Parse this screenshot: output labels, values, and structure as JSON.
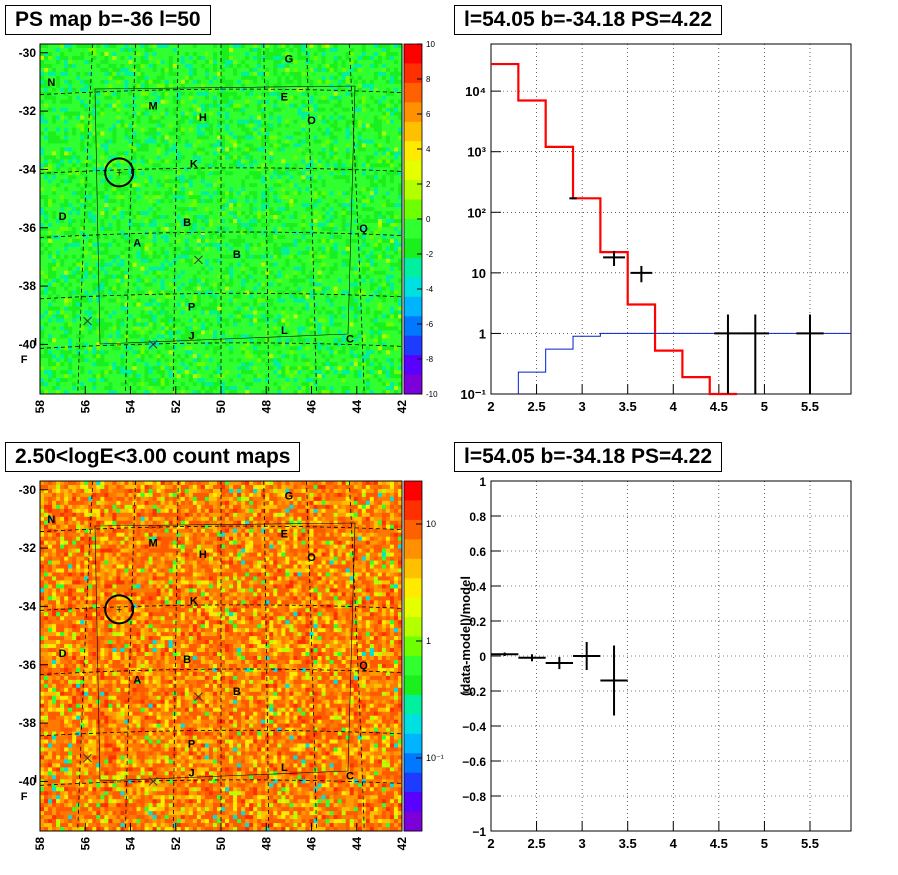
{
  "panels": {
    "ps_map": {
      "title": "PS map b=-36 l=50",
      "colorbar_ticks": [
        "10",
        "8",
        "6",
        "4",
        "2",
        "0",
        "-2",
        "-4",
        "-6",
        "-8",
        "-10"
      ]
    },
    "spectrum": {
      "title": "l=54.05 b=-34.18 PS=4.22"
    },
    "count_map": {
      "title": "2.50<logE<3.00 count maps",
      "colorbar_ticks": [
        "10",
        "1",
        "10⁻¹"
      ]
    },
    "residual": {
      "title": "l=54.05 b=-34.18 PS=4.22",
      "ylabel": "(data-model)/model"
    }
  },
  "map_axes": {
    "x_ticks": [
      "58",
      "56",
      "54",
      "52",
      "50",
      "48",
      "46",
      "44",
      "42"
    ],
    "y_ticks": [
      "-30",
      "-32",
      "-34",
      "-36",
      "-38",
      "-40"
    ]
  },
  "source_labels": [
    "N",
    "G",
    "E",
    "M",
    "H",
    "O",
    "K",
    "D",
    "B",
    "Q",
    "A",
    "B",
    "P",
    "L",
    "J",
    "I",
    "C",
    "F"
  ],
  "chart_data": [
    {
      "type": "heatmap",
      "title": "PS map b=-36 l=50",
      "xlim": [
        58,
        42
      ],
      "ylim": [
        -41.7,
        -29.7
      ],
      "zlim": [
        -10,
        10
      ],
      "marked_source": {
        "l": 54.5,
        "b": -34.1
      },
      "x_markers": [
        {
          "l": 51,
          "b": -37.1
        },
        {
          "l": 55.9,
          "b": -39.2
        },
        {
          "l": 53,
          "b": -40
        }
      ]
    },
    {
      "type": "line",
      "title": "l=54.05 b=-34.18 PS=4.22",
      "log_y": true,
      "xlim": [
        2,
        5.95
      ],
      "ylim": [
        0.1,
        60000
      ],
      "x_ticks": [
        "2",
        "2.5",
        "3",
        "3.5",
        "4",
        "4.5",
        "5",
        "5.5"
      ],
      "y_ticks": [
        "10⁻¹",
        "1",
        "10",
        "10²",
        "10³",
        "10⁴"
      ],
      "series": [
        {
          "bins": [
            [
              2.0,
              2.3,
              28000
            ],
            [
              2.3,
              2.6,
              7000
            ],
            [
              2.6,
              2.9,
              1200
            ],
            [
              2.9,
              3.2,
              170
            ],
            [
              3.2,
              3.5,
              22
            ],
            [
              3.5,
              3.8,
              3
            ],
            [
              3.8,
              4.1,
              0.52
            ],
            [
              4.1,
              4.4,
              0.19
            ],
            [
              4.4,
              4.7,
              0.09
            ]
          ]
        },
        {
          "bins": [
            [
              2.3,
              2.6,
              0.23
            ],
            [
              2.6,
              2.9,
              0.55
            ],
            [
              2.9,
              3.2,
              0.9
            ],
            [
              3.2,
              5.95,
              1.0
            ]
          ]
        },
        {
          "points": [
            [
              2.9,
              170,
              0.04,
              0
            ],
            [
              3.35,
              18,
              0.12,
              5
            ],
            [
              3.65,
              10,
              0.12,
              3
            ],
            [
              4.6,
              1,
              0.15,
              1.05
            ],
            [
              4.9,
              1,
              0.15,
              1.05
            ],
            [
              5.5,
              1,
              0.15,
              1.05
            ]
          ]
        }
      ]
    },
    {
      "type": "heatmap",
      "title": "2.50<logE<3.00 count maps",
      "xlim": [
        58,
        42
      ],
      "ylim": [
        -41.7,
        -29.7
      ],
      "zlim": [
        0.02,
        30
      ],
      "log_z": true,
      "marked_source": {
        "l": 54.5,
        "b": -34.1
      }
    },
    {
      "type": "scatter",
      "title": "l=54.05 b=-34.18 PS=4.22",
      "ylabel": "(data-model)/model",
      "xlim": [
        2,
        5.95
      ],
      "ylim": [
        -1,
        1
      ],
      "x_ticks": [
        "2",
        "2.5",
        "3",
        "3.5",
        "4",
        "4.5",
        "5",
        "5.5"
      ],
      "y_ticks": [
        "−1",
        "−0.8",
        "−0.6",
        "−0.4",
        "−0.2",
        "0",
        "0.2",
        "0.4",
        "0.6",
        "0.8",
        "1"
      ],
      "points": [
        [
          2.15,
          0.01,
          0.15,
          0.01
        ],
        [
          2.45,
          -0.01,
          0.15,
          0.02
        ],
        [
          2.75,
          -0.04,
          0.15,
          0.035
        ],
        [
          3.05,
          0.0,
          0.15,
          0.08
        ],
        [
          3.35,
          -0.14,
          0.15,
          0.2
        ]
      ]
    }
  ]
}
